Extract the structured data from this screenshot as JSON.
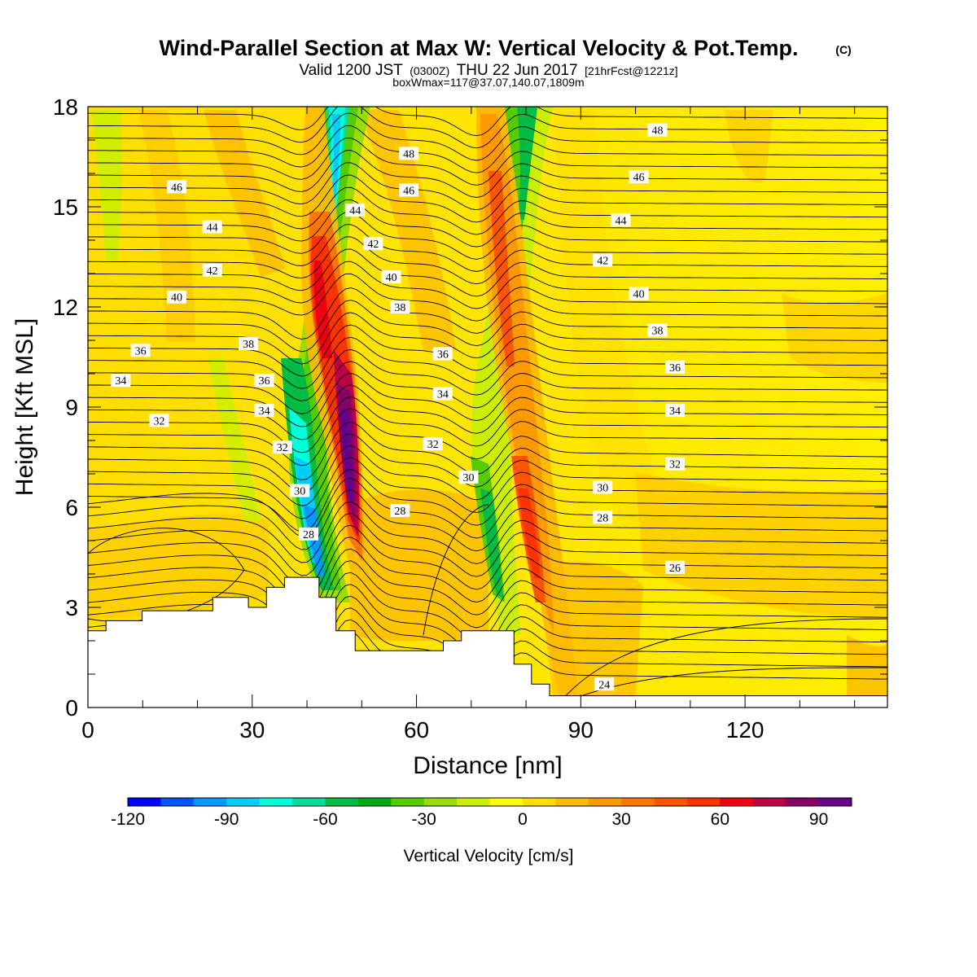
{
  "header": {
    "title": "Wind-Parallel Section at Max W: Vertical Velocity & Pot.Temp.",
    "copyright": "(C)",
    "valid_prefix": "Valid 1200 JST",
    "utc": "(0300Z)",
    "valid_date": "THU 22 Jun 2017",
    "forecast": "[21hrFcst@1221z]",
    "boxinfo": "boxWmax=117@37.07,140.07,1809m"
  },
  "chart_data": {
    "type": "heatmap",
    "xlabel": "Distance [nm]",
    "ylabel": "Height [Kft MSL]",
    "xlim": [
      0,
      146
    ],
    "ylim": [
      0,
      18
    ],
    "x_ticks": [
      0,
      30,
      60,
      90,
      120
    ],
    "y_ticks": [
      0,
      3,
      6,
      9,
      12,
      15,
      18
    ],
    "colorbar": {
      "title": "Vertical Velocity [cm/s]",
      "range": [
        -120,
        100
      ],
      "step": 10,
      "labels": [
        -120,
        -90,
        -60,
        -30,
        0,
        30,
        60,
        90
      ],
      "colors": [
        "#0000ff",
        "#0055ff",
        "#0099ff",
        "#00ccff",
        "#00ffdd",
        "#00dd99",
        "#00bb44",
        "#00aa11",
        "#55cc00",
        "#99dd00",
        "#ccee00",
        "#ffff00",
        "#ffdd00",
        "#ffbb00",
        "#ff9900",
        "#ff7700",
        "#ff5500",
        "#ff3300",
        "#ee0011",
        "#bb0044",
        "#880066",
        "#660088"
      ]
    },
    "terrain": [
      [
        0,
        2.3
      ],
      [
        3.3,
        2.6
      ],
      [
        9.9,
        2.9
      ],
      [
        22.8,
        3.3
      ],
      [
        29.3,
        3.0
      ],
      [
        32.6,
        3.6
      ],
      [
        35.9,
        3.9
      ],
      [
        42.2,
        3.3
      ],
      [
        45.3,
        2.3
      ],
      [
        48.8,
        1.7
      ],
      [
        64.9,
        2.0
      ],
      [
        68.2,
        2.3
      ],
      [
        77.8,
        1.3
      ],
      [
        81.0,
        0.7
      ],
      [
        84.3,
        0.35
      ],
      [
        146,
        0.4
      ]
    ],
    "theta_labels": [
      {
        "t": "48",
        "x": 58.6,
        "y": 16.6
      },
      {
        "t": "48",
        "x": 104,
        "y": 17.3
      },
      {
        "t": "46",
        "x": 16.2,
        "y": 15.6
      },
      {
        "t": "46",
        "x": 58.6,
        "y": 15.5
      },
      {
        "t": "46",
        "x": 100.6,
        "y": 15.9
      },
      {
        "t": "44",
        "x": 22.7,
        "y": 14.4
      },
      {
        "t": "44",
        "x": 48.8,
        "y": 14.9
      },
      {
        "t": "44",
        "x": 97.3,
        "y": 14.6
      },
      {
        "t": "42",
        "x": 22.7,
        "y": 13.1
      },
      {
        "t": "42",
        "x": 52.1,
        "y": 13.9
      },
      {
        "t": "42",
        "x": 94,
        "y": 13.4
      },
      {
        "t": "40",
        "x": 16.2,
        "y": 12.3
      },
      {
        "t": "40",
        "x": 55.4,
        "y": 12.9
      },
      {
        "t": "40",
        "x": 100.6,
        "y": 12.4
      },
      {
        "t": "38",
        "x": 29.3,
        "y": 10.9
      },
      {
        "t": "38",
        "x": 57,
        "y": 12
      },
      {
        "t": "38",
        "x": 104,
        "y": 11.3
      },
      {
        "t": "36",
        "x": 9.6,
        "y": 10.7
      },
      {
        "t": "36",
        "x": 32.2,
        "y": 9.8
      },
      {
        "t": "36",
        "x": 64.8,
        "y": 10.6
      },
      {
        "t": "36",
        "x": 107.2,
        "y": 10.2
      },
      {
        "t": "34",
        "x": 6,
        "y": 9.8
      },
      {
        "t": "34",
        "x": 32.2,
        "y": 8.9
      },
      {
        "t": "34",
        "x": 64.8,
        "y": 9.4
      },
      {
        "t": "34",
        "x": 107.2,
        "y": 8.9
      },
      {
        "t": "32",
        "x": 13,
        "y": 8.6
      },
      {
        "t": "32",
        "x": 35.5,
        "y": 7.8
      },
      {
        "t": "32",
        "x": 63,
        "y": 7.9
      },
      {
        "t": "32",
        "x": 107.2,
        "y": 7.3
      },
      {
        "t": "30",
        "x": 38.7,
        "y": 6.5
      },
      {
        "t": "30",
        "x": 69.5,
        "y": 6.9
      },
      {
        "t": "30",
        "x": 94,
        "y": 6.6
      },
      {
        "t": "28",
        "x": 40.3,
        "y": 5.2
      },
      {
        "t": "28",
        "x": 57,
        "y": 5.9
      },
      {
        "t": "28",
        "x": 94,
        "y": 5.7
      },
      {
        "t": "26",
        "x": 107.2,
        "y": 4.2
      },
      {
        "t": "24",
        "x": 94.3,
        "y": 0.7
      }
    ]
  }
}
